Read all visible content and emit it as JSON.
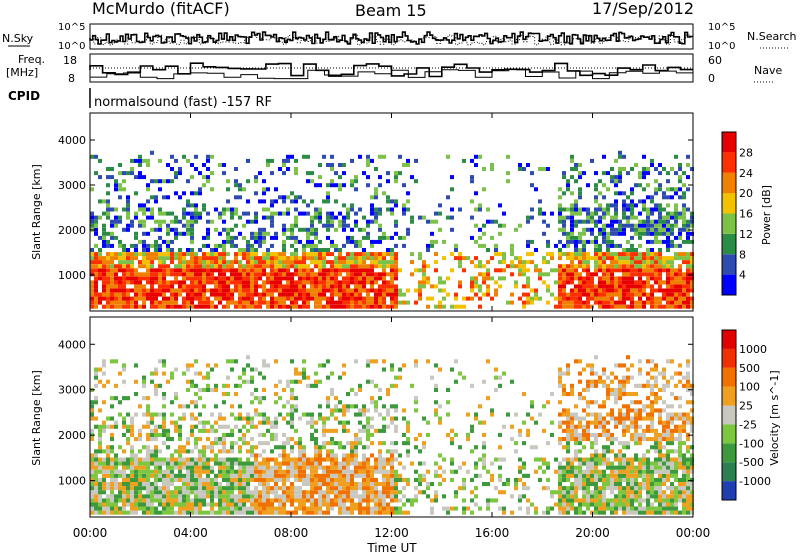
{
  "header": {
    "title": "McMurdo (fitACF)",
    "beam": "Beam 15",
    "date": "17/Sep/2012"
  },
  "panels": {
    "nsky": {
      "label": "N.Sky",
      "yticks": [
        "10^5",
        "10^0"
      ]
    },
    "nsearch": {
      "label": "N.Search",
      "yticks": [
        "10^5",
        "10^0"
      ]
    },
    "freq": {
      "label_line1": "Freq.",
      "label_line2": "[MHz]",
      "yticks": [
        "18",
        "8"
      ]
    },
    "nave": {
      "label": "Nave",
      "yticks": [
        "60",
        "0"
      ]
    },
    "cpid": {
      "label": "CPID",
      "mode_text": "normalsound (fast) -157 RF"
    }
  },
  "chart_data": [
    {
      "type": "heatmap",
      "name": "Power",
      "xlabel": "",
      "ylabel": "Slant Range [km]",
      "ylim": [
        200,
        4600
      ],
      "yticks": [
        "1000",
        "2000",
        "3000",
        "4000"
      ],
      "colorbar_label": "Power [dB]",
      "colorbar_ticks": [
        "28",
        "24",
        "20",
        "16",
        "12",
        "8",
        "4"
      ],
      "colors": [
        "#0000ff",
        "#2d4bb0",
        "#2b8c45",
        "#7cc148",
        "#f2c200",
        "#f08000",
        "#ff3000",
        "#e80000"
      ]
    },
    {
      "type": "heatmap",
      "name": "Velocity",
      "xlabel": "Time UT",
      "ylabel": "Slant Range [km]",
      "ylim": [
        200,
        4600
      ],
      "yticks": [
        "1000",
        "2000",
        "3000",
        "4000"
      ],
      "xticks": [
        "00:00",
        "04:00",
        "08:00",
        "12:00",
        "16:00",
        "20:00",
        "00:00"
      ],
      "colorbar_label": "Velocity [m s^-1]",
      "colorbar_ticks": [
        "1000",
        "500",
        "100",
        "25",
        "-25",
        "-100",
        "-500",
        "-1000"
      ],
      "colors": [
        "#1f3fb0",
        "#2a8050",
        "#3c9a3c",
        "#7cc640",
        "#c8c8c0",
        "#f0a020",
        "#f07000",
        "#f03000",
        "#e00000"
      ]
    }
  ]
}
